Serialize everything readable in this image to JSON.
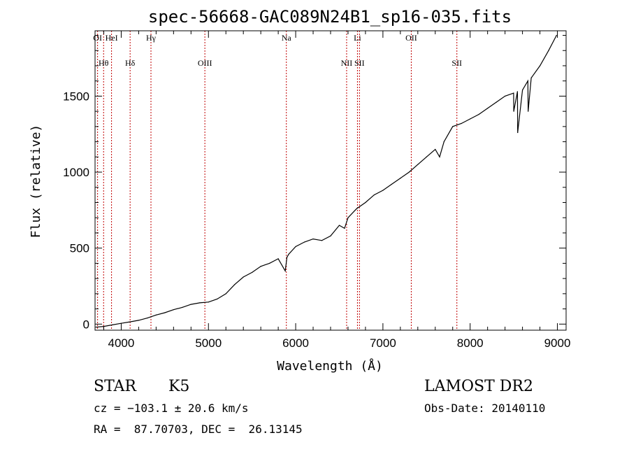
{
  "chart_data": {
    "type": "line",
    "title": "spec-56668-GAC089N24B1_sp16-035.fits",
    "xlabel": "Wavelength (Å)",
    "ylabel": "Flux (relative)",
    "xlim": [
      3700,
      9100
    ],
    "ylim": [
      -40,
      1930
    ],
    "x_ticks": [
      4000,
      5000,
      6000,
      7000,
      8000,
      9000
    ],
    "x_tick_labels": [
      "4000",
      "5000",
      "6000",
      "7000",
      "8000",
      "9000"
    ],
    "y_ticks": [
      0,
      500,
      1000,
      1500
    ],
    "y_tick_labels": [
      "0",
      "500",
      "1000",
      "1500"
    ],
    "grid": false,
    "series": [
      {
        "color": "#000000",
        "x": [
          3710,
          3800,
          3900,
          4000,
          4100,
          4200,
          4300,
          4400,
          4500,
          4600,
          4700,
          4800,
          4900,
          5000,
          5100,
          5200,
          5300,
          5400,
          5500,
          5600,
          5700,
          5800,
          5880,
          5900,
          5920,
          6000,
          6100,
          6200,
          6300,
          6400,
          6500,
          6560,
          6600,
          6700,
          6800,
          6900,
          7000,
          7100,
          7200,
          7300,
          7400,
          7500,
          7600,
          7650,
          7700,
          7800,
          7900,
          8000,
          8100,
          8200,
          8300,
          8400,
          8498,
          8500,
          8542,
          8545,
          8600,
          8662,
          8665,
          8700,
          8800,
          8900,
          8990
        ],
        "y": [
          -20,
          -15,
          -5,
          5,
          15,
          25,
          40,
          60,
          75,
          95,
          110,
          130,
          140,
          145,
          165,
          200,
          260,
          310,
          340,
          380,
          400,
          430,
          350,
          440,
          460,
          510,
          540,
          560,
          550,
          580,
          650,
          630,
          700,
          760,
          800,
          850,
          880,
          920,
          960,
          1000,
          1050,
          1100,
          1150,
          1100,
          1200,
          1300,
          1320,
          1350,
          1380,
          1420,
          1460,
          1500,
          1520,
          1400,
          1530,
          1260,
          1540,
          1600,
          1400,
          1620,
          1700,
          1800,
          1900
        ]
      }
    ],
    "line_markers": [
      {
        "label": "OI",
        "x": 3729
      },
      {
        "label": "Hθ",
        "x": 3798
      },
      {
        "label": "HeI",
        "x": 3889
      },
      {
        "label": "Hδ",
        "x": 4102
      },
      {
        "label": "Hγ",
        "x": 4341
      },
      {
        "label": "OIII",
        "x": 4959
      },
      {
        "label": "Na",
        "x": 5893
      },
      {
        "label": "NII",
        "x": 6584
      },
      {
        "label": "Li",
        "x": 6708
      },
      {
        "label": "SII",
        "x": 6731
      },
      {
        "label": "OII",
        "x": 7325
      },
      {
        "label": "SII",
        "x": 7848
      }
    ],
    "marker_color": "#c00000"
  },
  "info": {
    "object_class": "STAR",
    "subclass": "K5",
    "survey": "LAMOST DR2",
    "cz": "cz = −103.1 ± 20.6 km/s",
    "obs_date": "Obs-Date: 20140110",
    "coords": "RA =  87.70703, DEC =  26.13145"
  }
}
